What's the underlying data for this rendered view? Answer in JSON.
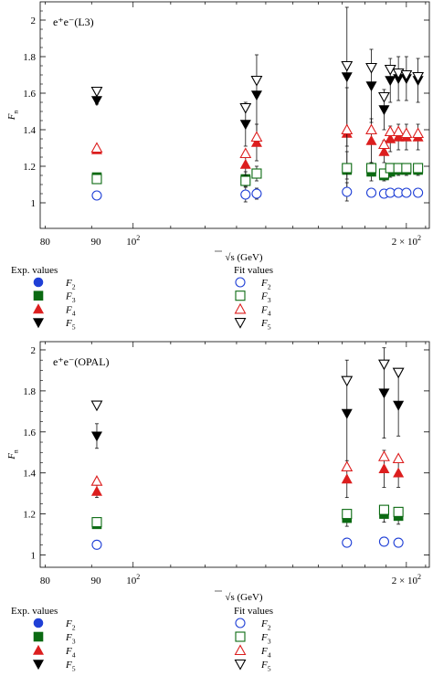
{
  "chart_data": [
    {
      "type": "scatter",
      "annotation": "e⁺e⁻(L3)",
      "ylabel": "F",
      "ylabel_sub": "n",
      "xlabel": "√s  (GeV)",
      "x_scale": "log",
      "xlim": [
        79,
        212
      ],
      "ylim": [
        0.86,
        2.1
      ],
      "yticks": [
        1,
        1.2,
        1.4,
        1.6,
        1.8,
        2
      ],
      "ytick_labels": [
        "1",
        "1.2",
        "1.4",
        "1.6",
        "1.8",
        "2"
      ],
      "xtick_labels": [
        {
          "x": 80,
          "text": "80"
        },
        {
          "x": 91,
          "text": "90"
        },
        {
          "x": 100,
          "text": "10",
          "sup": "2"
        },
        {
          "x": 200,
          "text": "2 × 10",
          "sup": "2"
        }
      ],
      "series": [
        {
          "name": "F2",
          "values": [
            {
              "x": 91.2,
              "y": 1.04,
              "err": 0.01
            },
            {
              "x": 133,
              "y": 1.045,
              "err": 0.04
            },
            {
              "x": 136.8,
              "y": 1.05,
              "err": 0.03
            },
            {
              "x": 172,
              "y": 1.06,
              "err": 0.05
            },
            {
              "x": 183,
              "y": 1.055,
              "err": 0.02
            },
            {
              "x": 189,
              "y": 1.05,
              "err": 0.01
            },
            {
              "x": 192,
              "y": 1.055,
              "err": 0.01
            },
            {
              "x": 196,
              "y": 1.055,
              "err": 0.01
            },
            {
              "x": 200,
              "y": 1.055,
              "err": 0.01
            },
            {
              "x": 206,
              "y": 1.055,
              "err": 0.01
            }
          ]
        },
        {
          "name": "F3",
          "values": [
            {
              "x": 91.2,
              "y": 1.14,
              "err": 0.01
            },
            {
              "x": 133,
              "y": 1.13,
              "err": 0.04
            },
            {
              "x": 136.8,
              "y": 1.16,
              "err": 0.04
            },
            {
              "x": 172,
              "y": 1.18,
              "err": 0.1
            },
            {
              "x": 183,
              "y": 1.17,
              "err": 0.05
            },
            {
              "x": 189,
              "y": 1.15,
              "err": 0.03
            },
            {
              "x": 192,
              "y": 1.17,
              "err": 0.03
            },
            {
              "x": 196,
              "y": 1.18,
              "err": 0.03
            },
            {
              "x": 200,
              "y": 1.18,
              "err": 0.03
            },
            {
              "x": 206,
              "y": 1.18,
              "err": 0.03
            }
          ]
        },
        {
          "name": "F4",
          "values": [
            {
              "x": 91.2,
              "y": 1.29,
              "err": 0.01
            },
            {
              "x": 133,
              "y": 1.21,
              "err": 0.06
            },
            {
              "x": 136.8,
              "y": 1.33,
              "err": 0.1
            },
            {
              "x": 172,
              "y": 1.38,
              "err": 0.25
            },
            {
              "x": 183,
              "y": 1.34,
              "err": 0.12
            },
            {
              "x": 189,
              "y": 1.28,
              "err": 0.06
            },
            {
              "x": 192,
              "y": 1.35,
              "err": 0.07
            },
            {
              "x": 196,
              "y": 1.36,
              "err": 0.07
            },
            {
              "x": 200,
              "y": 1.36,
              "err": 0.07
            },
            {
              "x": 206,
              "y": 1.36,
              "err": 0.07
            }
          ]
        },
        {
          "name": "F5",
          "values": [
            {
              "x": 91.2,
              "y": 1.56,
              "err": 0.02
            },
            {
              "x": 133,
              "y": 1.43,
              "err": 0.12
            },
            {
              "x": 136.8,
              "y": 1.59,
              "err": 0.22
            },
            {
              "x": 172,
              "y": 1.69,
              "err": 0.38
            },
            {
              "x": 183,
              "y": 1.64,
              "err": 0.2
            },
            {
              "x": 189,
              "y": 1.51,
              "err": 0.11
            },
            {
              "x": 192,
              "y": 1.67,
              "err": 0.12
            },
            {
              "x": 196,
              "y": 1.68,
              "err": 0.12
            },
            {
              "x": 200,
              "y": 1.68,
              "err": 0.12
            },
            {
              "x": 206,
              "y": 1.67,
              "err": 0.12
            }
          ]
        }
      ],
      "fit_series": [
        {
          "name": "F2",
          "values": [
            {
              "x": 91.2,
              "y": 1.04
            },
            {
              "x": 133,
              "y": 1.045
            },
            {
              "x": 136.8,
              "y": 1.05
            },
            {
              "x": 172,
              "y": 1.06
            },
            {
              "x": 183,
              "y": 1.055
            },
            {
              "x": 189,
              "y": 1.05
            },
            {
              "x": 192,
              "y": 1.055
            },
            {
              "x": 196,
              "y": 1.055
            },
            {
              "x": 200,
              "y": 1.055
            },
            {
              "x": 206,
              "y": 1.055
            }
          ]
        },
        {
          "name": "F3",
          "values": [
            {
              "x": 91.2,
              "y": 1.13
            },
            {
              "x": 133,
              "y": 1.12
            },
            {
              "x": 136.8,
              "y": 1.16
            },
            {
              "x": 172,
              "y": 1.19
            },
            {
              "x": 183,
              "y": 1.19
            },
            {
              "x": 189,
              "y": 1.16
            },
            {
              "x": 192,
              "y": 1.19
            },
            {
              "x": 196,
              "y": 1.19
            },
            {
              "x": 200,
              "y": 1.19
            },
            {
              "x": 206,
              "y": 1.19
            }
          ]
        },
        {
          "name": "F4",
          "values": [
            {
              "x": 91.2,
              "y": 1.3
            },
            {
              "x": 133,
              "y": 1.27
            },
            {
              "x": 136.8,
              "y": 1.36
            },
            {
              "x": 172,
              "y": 1.4
            },
            {
              "x": 183,
              "y": 1.4
            },
            {
              "x": 189,
              "y": 1.32
            },
            {
              "x": 192,
              "y": 1.39
            },
            {
              "x": 196,
              "y": 1.39
            },
            {
              "x": 200,
              "y": 1.38
            },
            {
              "x": 206,
              "y": 1.38
            }
          ]
        },
        {
          "name": "F5",
          "values": [
            {
              "x": 91.2,
              "y": 1.61
            },
            {
              "x": 133,
              "y": 1.52
            },
            {
              "x": 136.8,
              "y": 1.67
            },
            {
              "x": 172,
              "y": 1.75
            },
            {
              "x": 183,
              "y": 1.74
            },
            {
              "x": 189,
              "y": 1.58
            },
            {
              "x": 192,
              "y": 1.73
            },
            {
              "x": 196,
              "y": 1.71
            },
            {
              "x": 200,
              "y": 1.7
            },
            {
              "x": 206,
              "y": 1.69
            }
          ]
        }
      ],
      "legend": {
        "exp_title": "Exp. values",
        "fit_title": "Fit values",
        "labels": [
          "F",
          "F",
          "F",
          "F"
        ],
        "subs": [
          "2",
          "3",
          "4",
          "5"
        ]
      }
    },
    {
      "type": "scatter",
      "annotation": "e⁺e⁻(OPAL)",
      "ylabel": "F",
      "ylabel_sub": "n",
      "xlabel": "√s  (GeV)",
      "x_scale": "log",
      "xlim": [
        79,
        212
      ],
      "ylim": [
        0.94,
        2.04
      ],
      "yticks": [
        1,
        1.2,
        1.4,
        1.6,
        1.8,
        2
      ],
      "ytick_labels": [
        "1",
        "1.2",
        "1.4",
        "1.6",
        "1.8",
        "2"
      ],
      "xtick_labels": [
        {
          "x": 80,
          "text": "80"
        },
        {
          "x": 91,
          "text": "90"
        },
        {
          "x": 100,
          "text": "10",
          "sup": "2"
        },
        {
          "x": 200,
          "text": "2 × 10",
          "sup": "2"
        }
      ],
      "series": [
        {
          "name": "F2",
          "values": [
            {
              "x": 91.2,
              "y": 1.05,
              "err": 0.005
            },
            {
              "x": 172,
              "y": 1.06,
              "err": 0.02
            },
            {
              "x": 189,
              "y": 1.065,
              "err": 0.015
            },
            {
              "x": 196,
              "y": 1.06,
              "err": 0.015
            }
          ]
        },
        {
          "name": "F3",
          "values": [
            {
              "x": 91.2,
              "y": 1.15,
              "err": 0.02
            },
            {
              "x": 172,
              "y": 1.18,
              "err": 0.04
            },
            {
              "x": 189,
              "y": 1.2,
              "err": 0.04
            },
            {
              "x": 196,
              "y": 1.19,
              "err": 0.04
            }
          ]
        },
        {
          "name": "F4",
          "values": [
            {
              "x": 91.2,
              "y": 1.31,
              "err": 0.03
            },
            {
              "x": 172,
              "y": 1.37,
              "err": 0.09
            },
            {
              "x": 189,
              "y": 1.42,
              "err": 0.09
            },
            {
              "x": 196,
              "y": 1.4,
              "err": 0.07
            }
          ]
        },
        {
          "name": "F5",
          "values": [
            {
              "x": 91.2,
              "y": 1.58,
              "err": 0.06
            },
            {
              "x": 172,
              "y": 1.69,
              "err": 0.26
            },
            {
              "x": 189,
              "y": 1.79,
              "err": 0.22
            },
            {
              "x": 196,
              "y": 1.73,
              "err": 0.15
            }
          ]
        }
      ],
      "fit_series": [
        {
          "name": "F2",
          "values": [
            {
              "x": 91.2,
              "y": 1.05
            },
            {
              "x": 172,
              "y": 1.06
            },
            {
              "x": 189,
              "y": 1.065
            },
            {
              "x": 196,
              "y": 1.06
            }
          ]
        },
        {
          "name": "F3",
          "values": [
            {
              "x": 91.2,
              "y": 1.16
            },
            {
              "x": 172,
              "y": 1.2
            },
            {
              "x": 189,
              "y": 1.22
            },
            {
              "x": 196,
              "y": 1.21
            }
          ]
        },
        {
          "name": "F4",
          "values": [
            {
              "x": 91.2,
              "y": 1.36
            },
            {
              "x": 172,
              "y": 1.43
            },
            {
              "x": 189,
              "y": 1.48
            },
            {
              "x": 196,
              "y": 1.47
            }
          ]
        },
        {
          "name": "F5",
          "values": [
            {
              "x": 91.2,
              "y": 1.73
            },
            {
              "x": 172,
              "y": 1.85
            },
            {
              "x": 189,
              "y": 1.93
            },
            {
              "x": 196,
              "y": 1.89
            }
          ]
        }
      ],
      "legend": {
        "exp_title": "Exp. values",
        "fit_title": "Fit values",
        "labels": [
          "F",
          "F",
          "F",
          "F"
        ],
        "subs": [
          "2",
          "3",
          "4",
          "5"
        ]
      }
    }
  ],
  "colors": {
    "F2": "#1f3fd6",
    "F3": "#0b6a12",
    "F4": "#dc1e1e",
    "F5": "#000000",
    "errorbar": "#111111",
    "axis": "#000000"
  }
}
